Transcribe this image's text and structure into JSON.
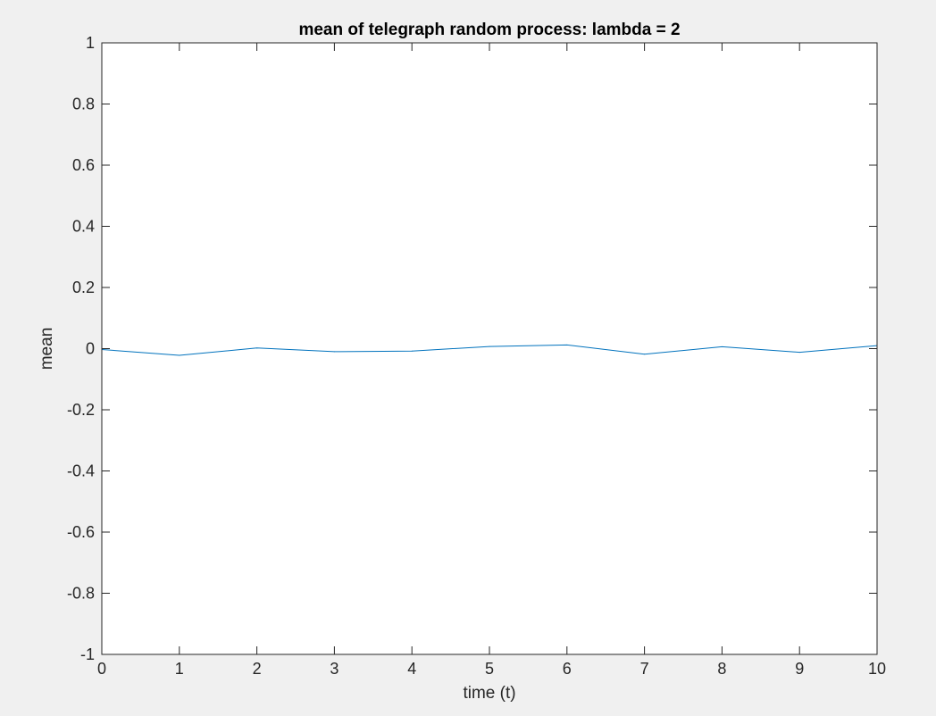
{
  "figure": {
    "background": "#f0f0f0"
  },
  "chart_data": {
    "type": "line",
    "title": "mean of telegraph random process: lambda = 2",
    "xlabel": "time (t)",
    "ylabel": "mean",
    "xlim": [
      0,
      10
    ],
    "ylim": [
      -1,
      1
    ],
    "xticks": [
      0,
      1,
      2,
      3,
      4,
      5,
      6,
      7,
      8,
      9,
      10
    ],
    "xtick_labels": [
      "0",
      "1",
      "2",
      "3",
      "4",
      "5",
      "6",
      "7",
      "8",
      "9",
      "10"
    ],
    "yticks": [
      -1,
      -0.8,
      -0.6,
      -0.4,
      -0.2,
      0,
      0.2,
      0.4,
      0.6,
      0.8,
      1
    ],
    "ytick_labels": [
      "-1",
      "-0.8",
      "-0.6",
      "-0.4",
      "-0.2",
      "0",
      "0.2",
      "0.4",
      "0.6",
      "0.8",
      "1"
    ],
    "grid": false,
    "series": [
      {
        "color": "#0072bd",
        "x": [
          0,
          1,
          2,
          3,
          4,
          5,
          6,
          7,
          8,
          9,
          10
        ],
        "y": [
          -0.003,
          -0.022,
          0.002,
          -0.01,
          -0.008,
          0.007,
          0.012,
          -0.018,
          0.006,
          -0.012,
          0.01
        ]
      }
    ]
  }
}
